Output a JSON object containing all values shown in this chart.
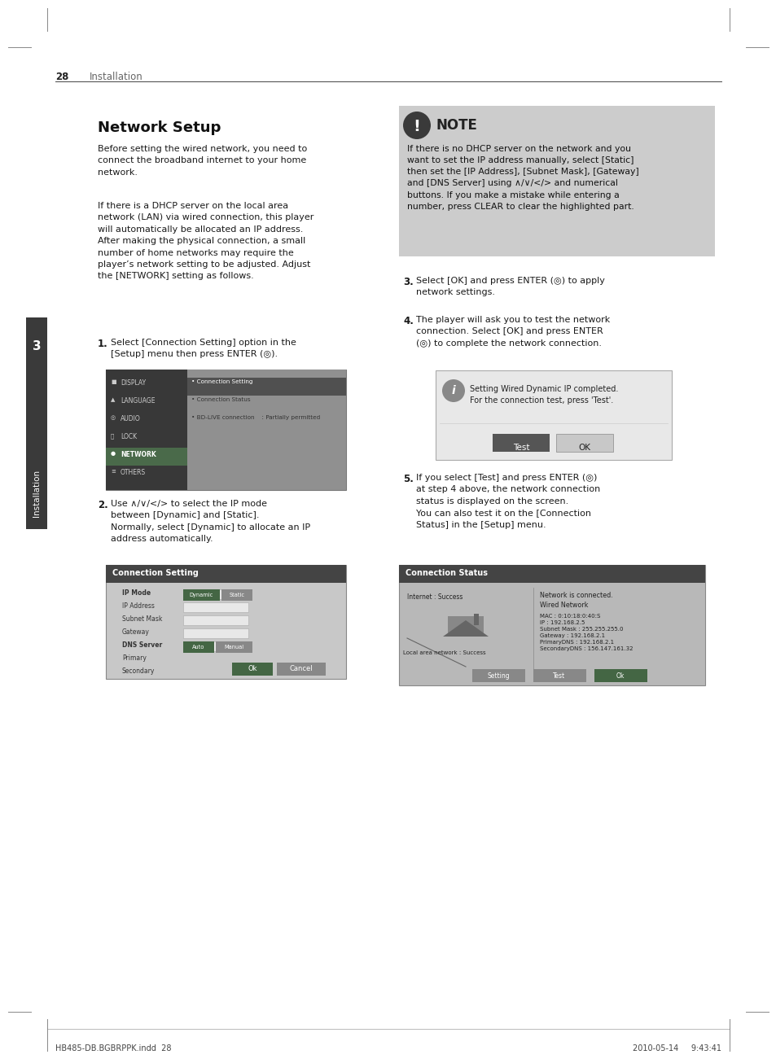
{
  "page_num": "28",
  "page_header": "Installation",
  "section_title": "Network Setup",
  "footer_left": "HB485-DB.BGBRPPK.indd  28",
  "footer_right": "2010-05-14     9:43:41",
  "bg_color": "#ffffff",
  "text_color": "#1a1a1a",
  "header_color": "#666666",
  "note_bg": "#cccccc",
  "sidebar_bg": "#3a3a3a",
  "screen_bg1": "#aaaaaa",
  "screen_bg2": "#cccccc",
  "scr_header_bg": "#505050",
  "scr_highlight": "#606060",
  "scr_network_bg": "#4a5a4a",
  "dlg_bg": "#e0e0e0",
  "dlg_border": "#999999",
  "note_icon_bg": "#555555",
  "info_icon_bg": "#888888",
  "btn_green": "#556655",
  "btn_gray": "#888888",
  "btn_dark": "#555555"
}
